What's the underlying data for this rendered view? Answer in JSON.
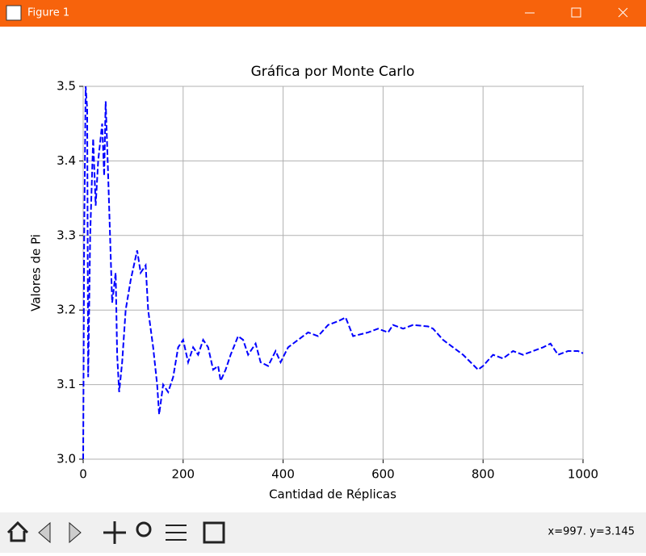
{
  "window": {
    "title": "Figure 1",
    "status": "x=997. y=3.145"
  },
  "chart_data": {
    "type": "line",
    "title": "Gráfica por Monte Carlo",
    "xlabel": "Cantidad de Réplicas",
    "ylabel": "Valores de Pi",
    "x": [
      0,
      2,
      5,
      8,
      10,
      14,
      20,
      25,
      30,
      38,
      42,
      45,
      50,
      58,
      65,
      68,
      72,
      78,
      85,
      95,
      108,
      115,
      125,
      130,
      140,
      148,
      152,
      160,
      170,
      180,
      190,
      200,
      210,
      220,
      230,
      240,
      250,
      260,
      270,
      275,
      285,
      295,
      310,
      320,
      330,
      345,
      355,
      370,
      385,
      395,
      410,
      430,
      450,
      470,
      490,
      510,
      525,
      540,
      570,
      590,
      610,
      620,
      640,
      660,
      690,
      700,
      720,
      740,
      760,
      775,
      790,
      800,
      820,
      840,
      860,
      880,
      900,
      920,
      935,
      950,
      970,
      990,
      1000
    ],
    "series": [
      {
        "name": "Valores de Pi",
        "color": "#0000ff",
        "values": [
          3.0,
          3.3,
          3.5,
          3.47,
          3.11,
          3.3,
          3.43,
          3.34,
          3.4,
          3.45,
          3.38,
          3.48,
          3.38,
          3.21,
          3.25,
          3.14,
          3.09,
          3.13,
          3.2,
          3.24,
          3.28,
          3.25,
          3.26,
          3.2,
          3.15,
          3.1,
          3.06,
          3.1,
          3.09,
          3.11,
          3.15,
          3.16,
          3.13,
          3.15,
          3.14,
          3.16,
          3.15,
          3.12,
          3.125,
          3.105,
          3.12,
          3.14,
          3.165,
          3.16,
          3.14,
          3.155,
          3.13,
          3.125,
          3.145,
          3.13,
          3.15,
          3.16,
          3.17,
          3.165,
          3.18,
          3.185,
          3.19,
          3.165,
          3.17,
          3.175,
          3.17,
          3.18,
          3.175,
          3.18,
          3.178,
          3.175,
          3.16,
          3.15,
          3.14,
          3.13,
          3.12,
          3.125,
          3.14,
          3.135,
          3.145,
          3.14,
          3.145,
          3.15,
          3.155,
          3.14,
          3.145,
          3.145,
          3.142
        ]
      }
    ],
    "xlim": [
      0,
      1000
    ],
    "xticks": [
      0,
      200,
      400,
      600,
      800,
      1000
    ],
    "ylim": [
      3.0,
      3.5
    ],
    "yticks": [
      {
        "value": 3.0,
        "label": "3.0"
      },
      3.1,
      3.2,
      3.3,
      3.4,
      3.5
    ],
    "grid": true,
    "linestyle": "dashed"
  }
}
